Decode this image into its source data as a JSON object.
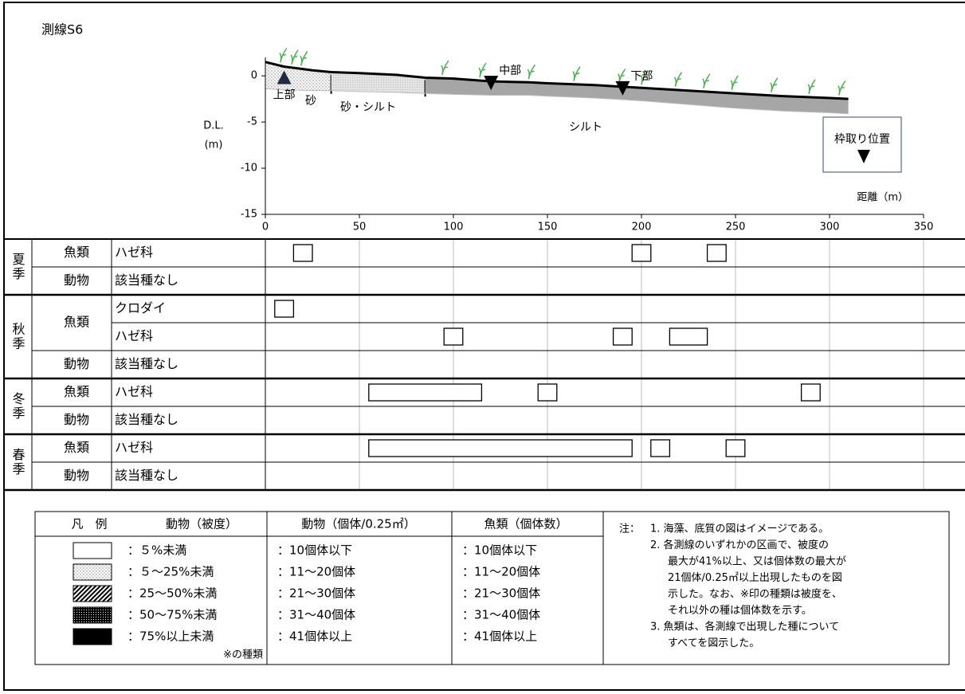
{
  "title": "測線S6",
  "profile": {
    "type": "line",
    "y_label_lines": [
      "D.L.",
      "(m)"
    ],
    "x_label": "距離（m）",
    "xlim": [
      0,
      350
    ],
    "xticks": [
      0,
      50,
      100,
      150,
      200,
      250,
      300,
      350
    ],
    "ylim": [
      -15,
      2
    ],
    "yticks": [
      0,
      -5,
      -10,
      -15
    ],
    "x": [
      0,
      10,
      25,
      35,
      50,
      70,
      85,
      100,
      120,
      140,
      150,
      175,
      200,
      225,
      250,
      275,
      300,
      310
    ],
    "surface": [
      1.5,
      1.0,
      0.6,
      0.4,
      0.3,
      0.1,
      -0.2,
      -0.3,
      -0.6,
      -0.7,
      -0.8,
      -1.0,
      -1.3,
      -1.6,
      -1.9,
      -2.2,
      -2.4,
      -2.5
    ],
    "bottom": [
      -1.4,
      -1.5,
      -1.6,
      -1.6,
      -1.7,
      -1.8,
      -1.9,
      -2.0,
      -2.1,
      -2.1,
      -2.2,
      -2.4,
      -2.7,
      -3.1,
      -3.5,
      -3.8,
      -4.0,
      -4.1
    ],
    "substrates": [
      {
        "label": "砂",
        "from": 0,
        "to": 35
      },
      {
        "label": "砂・シルト",
        "from": 35,
        "to": 85
      },
      {
        "label": "シルト",
        "from": 85,
        "to": 310
      }
    ],
    "stations": [
      {
        "label": "上部",
        "x": 10,
        "marker": "up"
      },
      {
        "label": "中部",
        "x": 120,
        "marker": "down"
      },
      {
        "label": "下部",
        "x": 190,
        "marker": "down"
      }
    ],
    "key_label": "枠取り位置"
  },
  "table": {
    "seasons": [
      {
        "name": "夏季",
        "groups": [
          {
            "name": "魚類",
            "species": [
              {
                "name": "ハゼ科",
                "cells": [
                  {
                    "from": 15,
                    "to": 25
                  },
                  {
                    "from": 195,
                    "to": 205
                  },
                  {
                    "from": 235,
                    "to": 245
                  }
                ]
              }
            ]
          },
          {
            "name": "動物",
            "species": [
              {
                "name": "該当種なし",
                "cells": []
              }
            ]
          }
        ]
      },
      {
        "name": "秋季",
        "groups": [
          {
            "name": "魚類",
            "species": [
              {
                "name": "クロダイ",
                "cells": [
                  {
                    "from": 5,
                    "to": 15
                  }
                ]
              },
              {
                "name": "ハゼ科",
                "cells": [
                  {
                    "from": 95,
                    "to": 105
                  },
                  {
                    "from": 185,
                    "to": 195
                  },
                  {
                    "from": 215,
                    "to": 235
                  }
                ]
              }
            ]
          },
          {
            "name": "動物",
            "species": [
              {
                "name": "該当種なし",
                "cells": []
              }
            ]
          }
        ]
      },
      {
        "name": "冬季",
        "groups": [
          {
            "name": "魚類",
            "species": [
              {
                "name": "ハゼ科",
                "cells": [
                  {
                    "from": 55,
                    "to": 115
                  },
                  {
                    "from": 145,
                    "to": 155
                  },
                  {
                    "from": 285,
                    "to": 295
                  }
                ]
              }
            ]
          },
          {
            "name": "動物",
            "species": [
              {
                "name": "該当種なし",
                "cells": []
              }
            ]
          }
        ]
      },
      {
        "name": "春季",
        "groups": [
          {
            "name": "魚類",
            "species": [
              {
                "name": "ハゼ科",
                "cells": [
                  {
                    "from": 55,
                    "to": 195
                  },
                  {
                    "from": 205,
                    "to": 215
                  },
                  {
                    "from": 245,
                    "to": 255
                  }
                ]
              }
            ]
          },
          {
            "name": "動物",
            "species": [
              {
                "name": "該当種なし",
                "cells": []
              }
            ]
          }
        ]
      }
    ]
  },
  "legend": {
    "headers": [
      "凡　例",
      "動物（被度）",
      "動物（個体/0.25㎡）",
      "魚類（個体数）"
    ],
    "coverage": [
      "：５%未満",
      "：５～25%未満",
      "：25～50%未満",
      "：50～75%未満",
      "：75%以上未満"
    ],
    "coverage_note": "※の種類",
    "animal_counts": [
      "：10個体以下",
      "：11～20個体",
      "：21～30個体",
      "：31～40個体",
      "：41個体以上"
    ],
    "fish_counts": [
      "：10個体以下",
      "：11～20個体",
      "：21～30個体",
      "：31～40個体",
      "：41個体以上"
    ]
  },
  "notes": {
    "label": "注：",
    "items": [
      [
        "1. 海藻、底質の図はイメージである。"
      ],
      [
        "2. 各測線のいずれかの区画で、被度の",
        "最大が41%以上、又は個体数の最大が",
        "21個体/0.25㎡以上出現したものを図",
        "示した。なお、※印の種類は被度を、",
        "それ以外の種は個体数を示す。"
      ],
      [
        "3. 魚類は、各測線で出現した種について",
        "すべてを図示した。"
      ]
    ]
  }
}
